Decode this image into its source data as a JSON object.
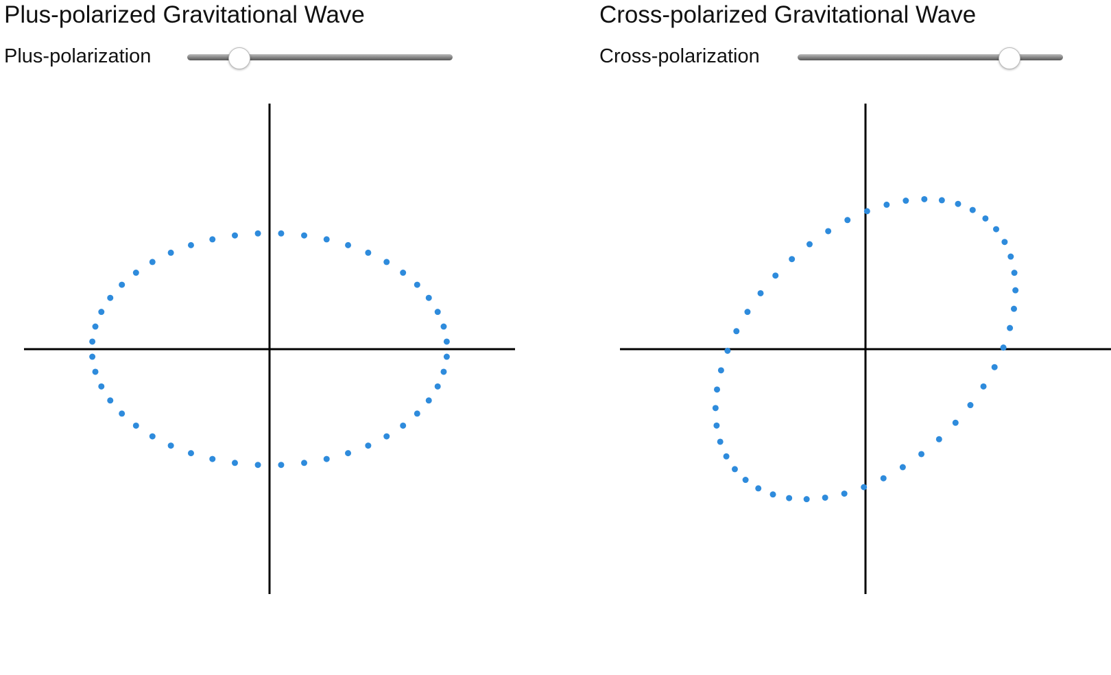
{
  "panels": [
    {
      "title": "Plus-polarized Gravitational Wave",
      "slider_label": "Plus-polarization"
    },
    {
      "title": "Cross-polarized Gravitational Wave",
      "slider_label": "Cross-polarization"
    }
  ]
}
